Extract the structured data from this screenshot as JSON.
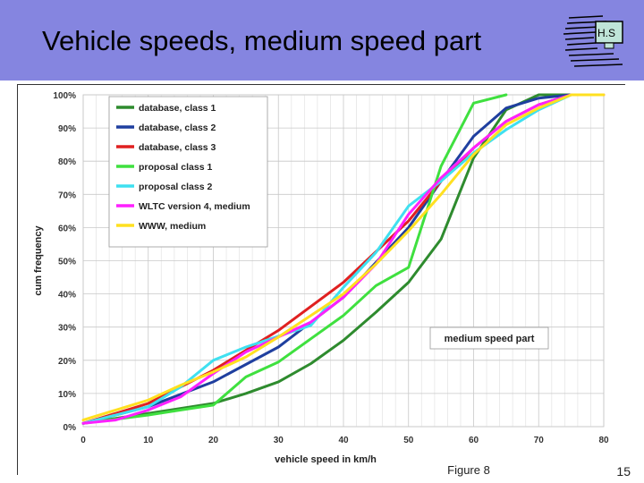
{
  "slide": {
    "title": "Vehicle speeds, medium speed part",
    "logo_text": "H.S",
    "figure_label": "Figure 8",
    "page_number": "15"
  },
  "chart_data": {
    "type": "line",
    "title": "",
    "xlabel": "vehicle speed in km/h",
    "ylabel": "cum frequency",
    "xlim": [
      0,
      80
    ],
    "ylim": [
      0,
      100
    ],
    "xticks": [
      "0",
      "10",
      "20",
      "30",
      "40",
      "50",
      "60",
      "70",
      "80"
    ],
    "yticks": [
      "0%",
      "10%",
      "20%",
      "30%",
      "40%",
      "50%",
      "60%",
      "70%",
      "80%",
      "90%",
      "100%"
    ],
    "grid": true,
    "legend_position": "top-left",
    "annotation": "medium speed part",
    "series": [
      {
        "name": "database, class 1",
        "color": "#2e8b2e",
        "x": [
          0,
          10,
          20,
          25,
          30,
          35,
          40,
          45,
          50,
          55,
          60,
          65,
          70,
          75
        ],
        "y": [
          1,
          4,
          7,
          10,
          13.5,
          19,
          26,
          34.5,
          43.5,
          56.5,
          81,
          95.5,
          100,
          100
        ]
      },
      {
        "name": "database, class 2",
        "color": "#1f3f9f",
        "x": [
          0,
          10,
          20,
          30,
          40,
          50,
          55,
          60,
          65,
          70,
          75
        ],
        "y": [
          1,
          6,
          13.5,
          24,
          39,
          60,
          74,
          87.5,
          96,
          99,
          100
        ]
      },
      {
        "name": "database, class 3",
        "color": "#e02020",
        "x": [
          0,
          10,
          20,
          30,
          40,
          50,
          55,
          60,
          65,
          70,
          75
        ],
        "y": [
          1,
          7,
          17,
          29,
          43.5,
          62,
          74,
          84,
          92,
          97,
          100
        ]
      },
      {
        "name": "proposal class 1",
        "color": "#3fe03f",
        "x": [
          0,
          10,
          15,
          20,
          25,
          30,
          35,
          40,
          45,
          50,
          55,
          60,
          65
        ],
        "y": [
          1,
          3.5,
          5,
          6.5,
          15,
          19.5,
          26.5,
          33.5,
          42.5,
          48,
          78.5,
          97.5,
          100
        ]
      },
      {
        "name": "proposal class 2",
        "color": "#3fe0f0",
        "x": [
          0,
          10,
          15,
          20,
          25,
          35,
          40,
          45,
          50,
          55,
          60,
          65,
          70,
          75
        ],
        "y": [
          1,
          6,
          12,
          20,
          24,
          30.5,
          42,
          52.5,
          66.5,
          74,
          82.5,
          89.5,
          95.5,
          100
        ]
      },
      {
        "name": "WLTC version 4, medium",
        "color": "#ff20ff",
        "x": [
          0,
          5,
          10,
          15,
          20,
          25,
          30,
          35,
          40,
          45,
          50,
          55,
          60,
          65,
          70,
          75,
          80
        ],
        "y": [
          1,
          2,
          5,
          9,
          16,
          22.5,
          27,
          31.5,
          39,
          49,
          64,
          75,
          84,
          92,
          97,
          100,
          100
        ]
      },
      {
        "name": "WWW, medium",
        "color": "#ffe020",
        "x": [
          0,
          10,
          15,
          20,
          25,
          30,
          35,
          40,
          45,
          50,
          55,
          60,
          65,
          70,
          75,
          80
        ],
        "y": [
          2,
          8,
          12.5,
          16.5,
          21,
          27,
          33.5,
          40,
          49,
          59,
          70,
          82,
          91,
          96,
          100,
          100
        ]
      }
    ]
  }
}
